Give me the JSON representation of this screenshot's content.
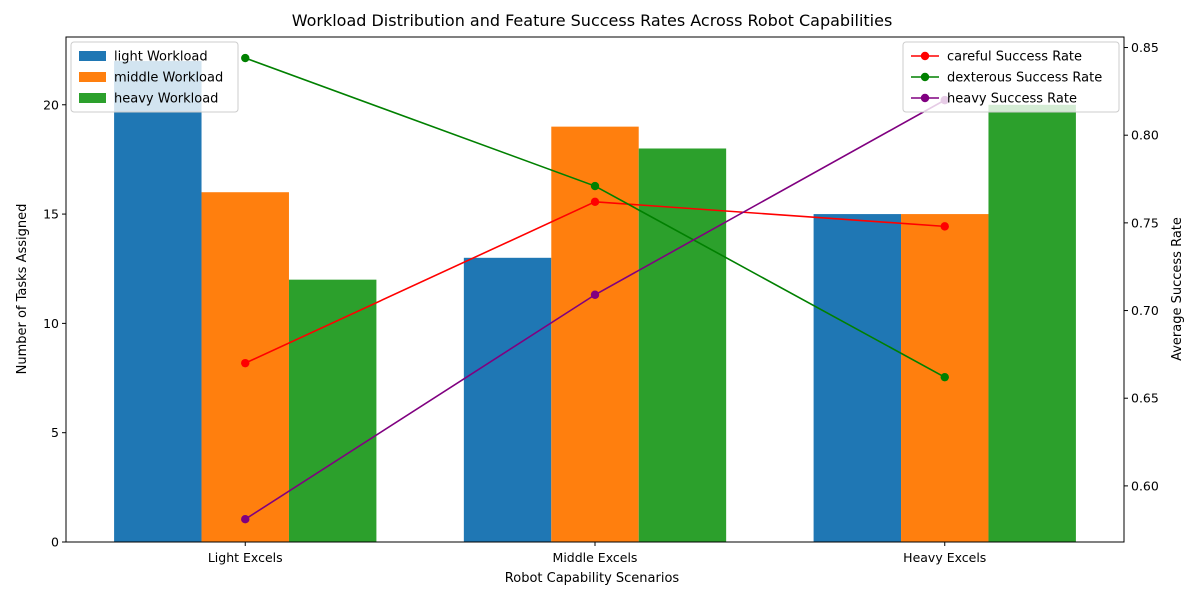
{
  "chart_data": {
    "type": "bar",
    "title": "Workload Distribution and Feature Success Rates Across Robot Capabilities",
    "xlabel": "Robot Capability Scenarios",
    "ylabel": "Number of Tasks Assigned",
    "y2label": "Average Success Rate",
    "categories": [
      "Light Excels",
      "Middle Excels",
      "Heavy Excels"
    ],
    "ylim": [
      0,
      23.1
    ],
    "y_ticks": [
      0,
      5,
      10,
      15,
      20
    ],
    "y2lim": [
      0.568,
      0.856
    ],
    "y2_ticks": [
      0.6,
      0.65,
      0.7,
      0.75,
      0.8,
      0.85
    ],
    "y2_tick_labels": [
      "0.60",
      "0.65",
      "0.70",
      "0.75",
      "0.80",
      "0.85"
    ],
    "bar_series": [
      {
        "name": "light Workload",
        "color": "#1f77b4",
        "values": [
          22,
          13,
          15
        ]
      },
      {
        "name": "middle Workload",
        "color": "#ff7f0e",
        "values": [
          16,
          19,
          15
        ]
      },
      {
        "name": "heavy Workload",
        "color": "#2ca02c",
        "values": [
          12,
          18,
          20
        ]
      }
    ],
    "line_series": [
      {
        "name": "careful Success Rate",
        "color": "#ff0000",
        "values": [
          0.67,
          0.762,
          0.748
        ]
      },
      {
        "name": "dexterous Success Rate",
        "color": "#008000",
        "values": [
          0.844,
          0.771,
          0.662
        ]
      },
      {
        "name": "heavy Success Rate",
        "color": "#800080",
        "values": [
          0.581,
          0.709,
          0.82
        ]
      }
    ],
    "bar_legend_position": "upper-left",
    "line_legend_position": "upper-right",
    "grid": false
  }
}
